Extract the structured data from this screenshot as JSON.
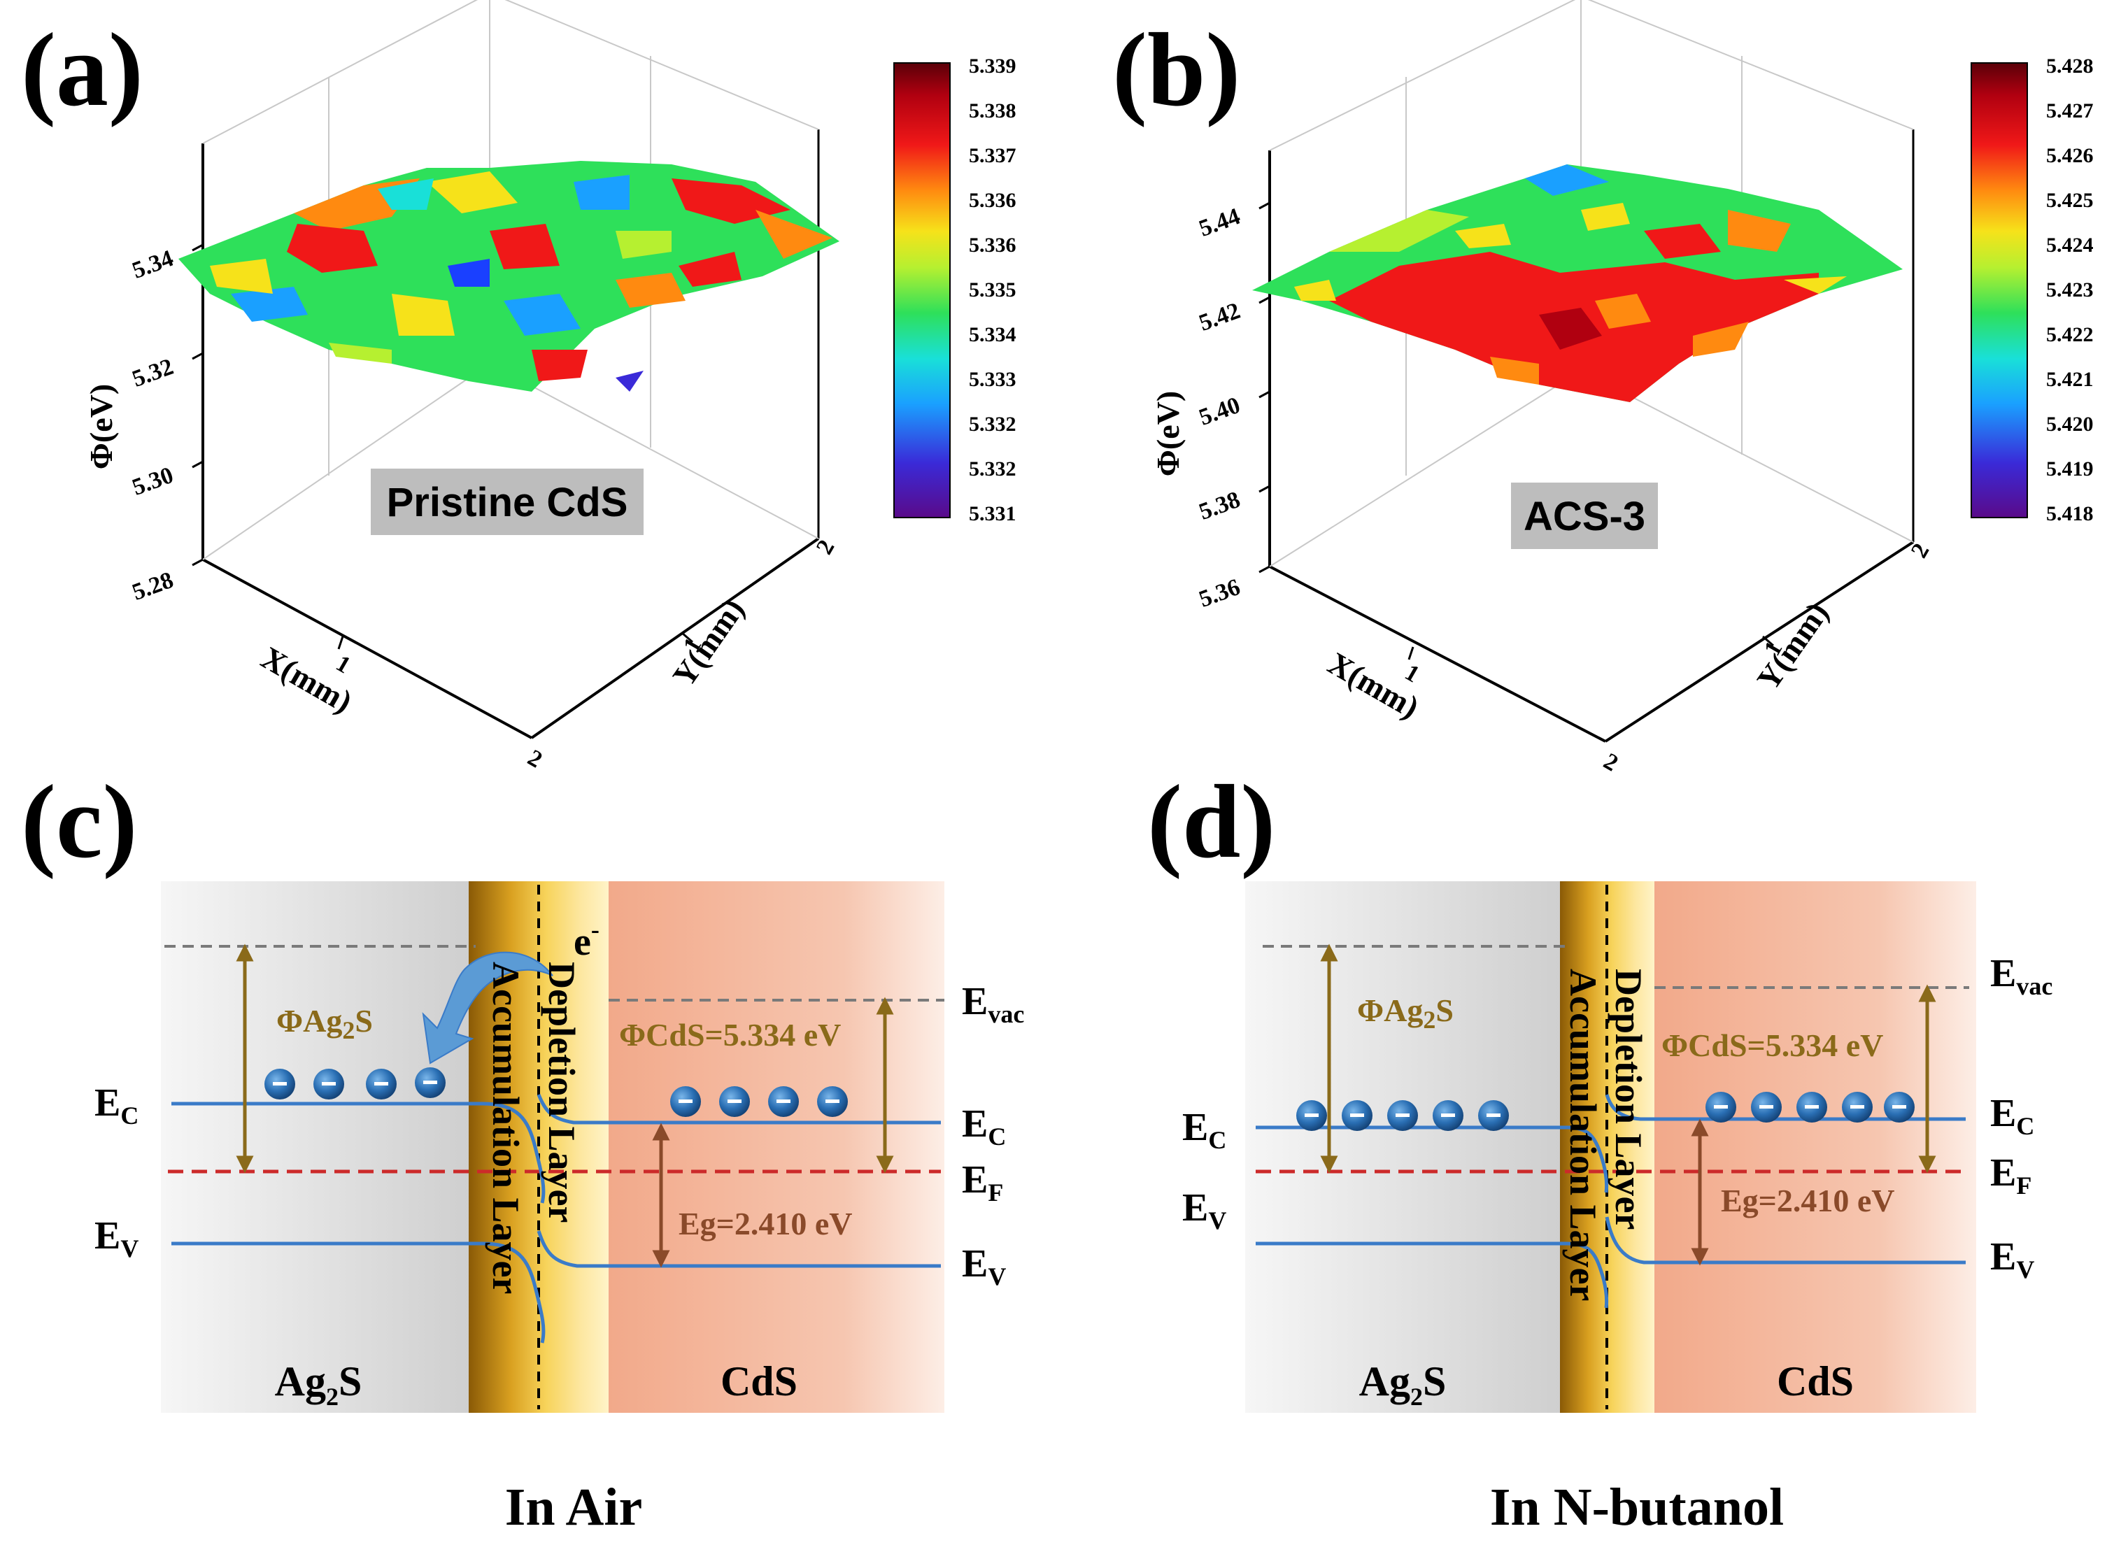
{
  "panels": {
    "a": {
      "label": "(a)",
      "sample": "Pristine CdS",
      "z_axis_title": "Φ(eV)",
      "z_ticks": [
        "5.28",
        "5.30",
        "5.32",
        "5.34"
      ],
      "x_axis_title": "X(mm)",
      "y_axis_title": "Y(mm)",
      "x_ticks": [
        "1",
        "2"
      ],
      "y_ticks": [
        "1",
        "2"
      ],
      "colorbar_ticks": [
        "5.339",
        "5.338",
        "5.337",
        "5.336",
        "5.336",
        "5.335",
        "5.334",
        "5.333",
        "5.332",
        "5.332",
        "5.331"
      ]
    },
    "b": {
      "label": "(b)",
      "sample": "ACS-3",
      "z_axis_title": "Φ(eV)",
      "z_ticks": [
        "5.36",
        "5.38",
        "5.40",
        "5.42",
        "5.44"
      ],
      "x_axis_title": "X(mm)",
      "y_axis_title": "Y(mm)",
      "x_ticks": [
        "1",
        "2"
      ],
      "y_ticks": [
        "1",
        "2"
      ],
      "colorbar_ticks": [
        "5.428",
        "5.427",
        "5.426",
        "5.425",
        "5.424",
        "5.423",
        "5.422",
        "5.421",
        "5.420",
        "5.419",
        "5.418"
      ]
    },
    "c": {
      "label": "(c)",
      "caption": "In Air",
      "left_material": "Ag",
      "left_material_sub": "2",
      "left_material_end": "S",
      "right_material": "CdS",
      "phi_left": "ΦAg",
      "phi_left_sub": "2",
      "phi_left_end": "S",
      "phi_right": "ΦCdS=5.334 eV",
      "eg": "Eg=2.410 eV",
      "electron": "e",
      "electron_sup": "-",
      "accumulation": "Accumulation Layer",
      "depletion": "Depletion Layer",
      "levels": {
        "E": "E",
        "c": "C",
        "v": "V",
        "f": "F",
        "vac": "vac"
      },
      "carrier_sign": "−"
    },
    "d": {
      "label": "(d)",
      "caption": "In N-butanol",
      "left_material": "Ag",
      "left_material_sub": "2",
      "left_material_end": "S",
      "right_material": "CdS",
      "phi_left": "ΦAg",
      "phi_left_sub": "2",
      "phi_left_end": "S",
      "phi_right": "ΦCdS=5.334 eV",
      "eg": "Eg=2.410 eV",
      "accumulation": "Accumulation Layer",
      "depletion": "Depletion Layer",
      "levels": {
        "E": "E",
        "c": "C",
        "v": "V",
        "f": "F",
        "vac": "vac"
      },
      "carrier_sign": "−"
    }
  },
  "colors": {
    "blue_band": "#3a7bc8",
    "fermi": "#cc2a2a",
    "vac": "#7a7a7a",
    "gold_arrow": "#8a6a1a",
    "brown_arrow": "#8a4a2a",
    "electron": "#1f5fa0",
    "transfer_arrow": "#5b9bd5"
  }
}
